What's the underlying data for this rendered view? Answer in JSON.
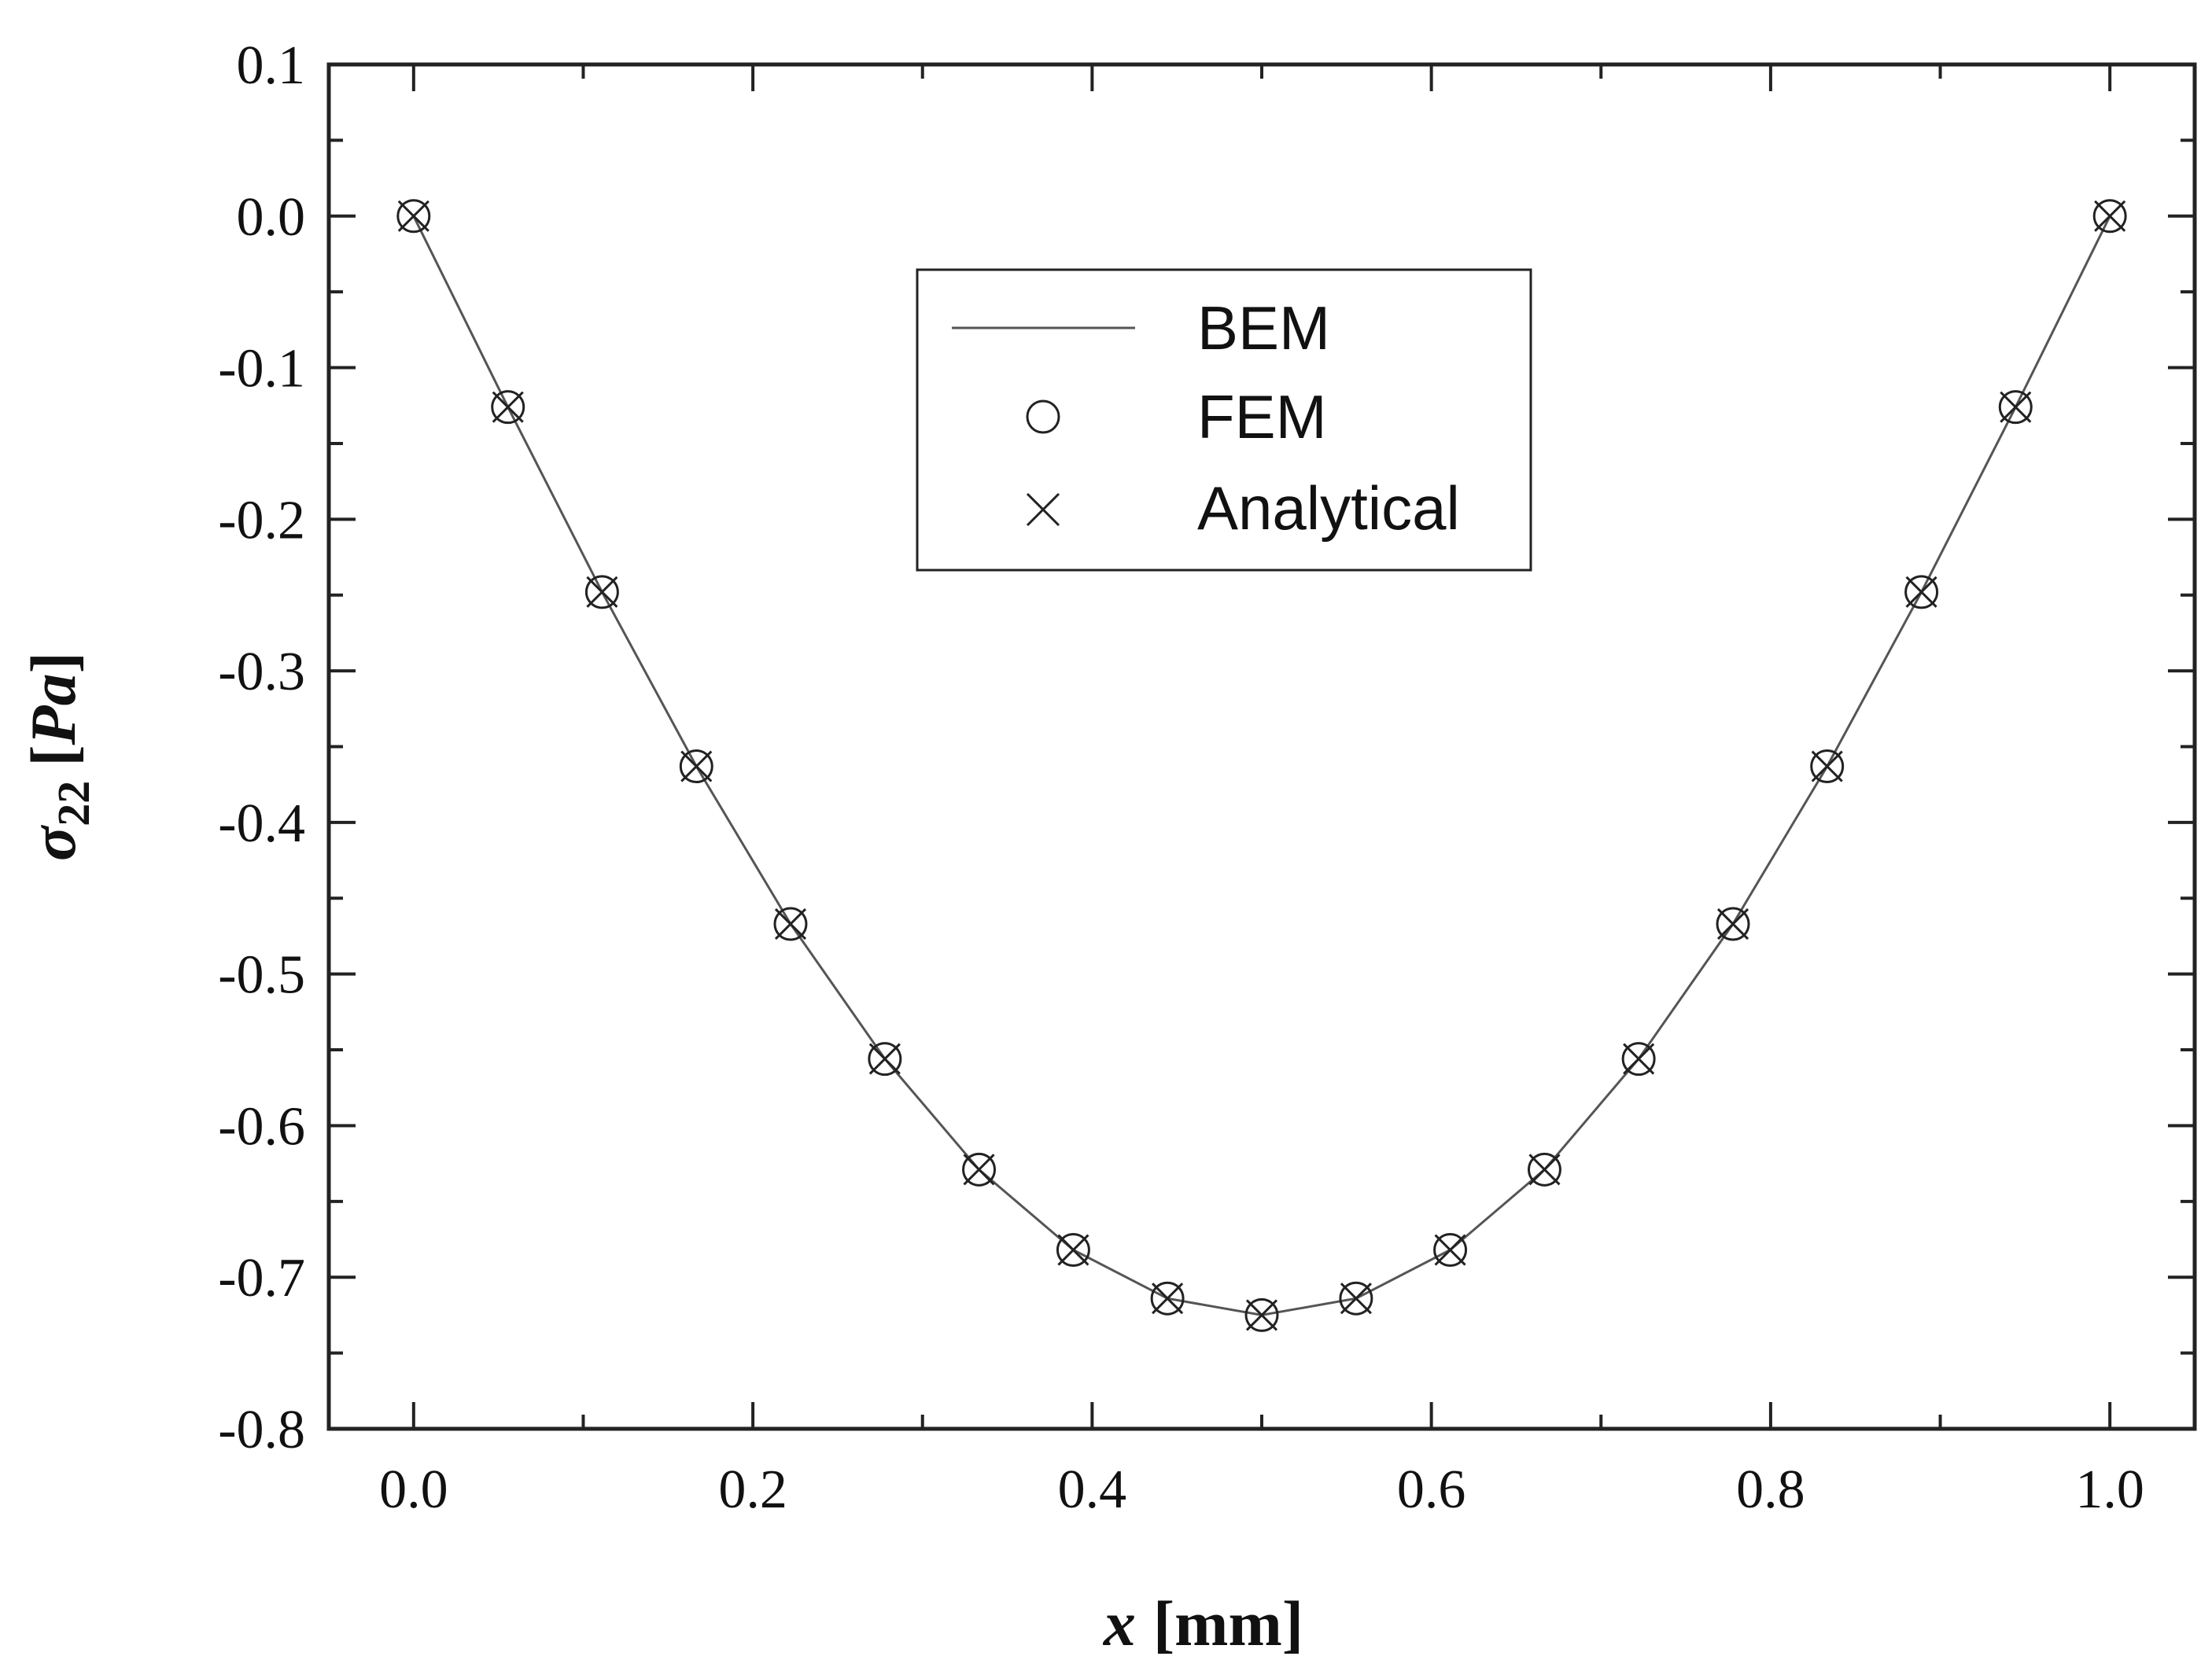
{
  "chart_data": {
    "type": "line",
    "xlabel": {
      "var": "x",
      "unit": "[mm]"
    },
    "ylabel": {
      "var": "σ",
      "sub": "22",
      "unit_open": "[",
      "unit": "Pa",
      "unit_close": "]"
    },
    "xlim": [
      -0.05,
      1.05
    ],
    "ylim": [
      -0.8,
      0.1
    ],
    "xticks": [
      0.0,
      0.2,
      0.4,
      0.6,
      0.8,
      1.0
    ],
    "xtick_labels": [
      "0.0",
      "0.2",
      "0.4",
      "0.6",
      "0.8",
      "1.0"
    ],
    "yticks": [
      0.1,
      0.0,
      -0.1,
      -0.2,
      -0.3,
      -0.4,
      -0.5,
      -0.6,
      -0.7,
      -0.8
    ],
    "ytick_labels": [
      "0.1",
      "0.0",
      "-0.1",
      "-0.2",
      "-0.3",
      "-0.4",
      "-0.5",
      "-0.6",
      "-0.7",
      "-0.8"
    ],
    "grid": false,
    "legend_position": "top-center",
    "x": [
      0.0,
      0.0556,
      0.1111,
      0.1667,
      0.2222,
      0.2778,
      0.3333,
      0.3889,
      0.4444,
      0.5,
      0.5556,
      0.6111,
      0.6667,
      0.7222,
      0.7778,
      0.8333,
      0.8889,
      0.9444,
      1.0
    ],
    "series": [
      {
        "name": "BEM",
        "style": "line",
        "color": "#555555",
        "values": [
          0.0,
          -0.126,
          -0.248,
          -0.363,
          -0.467,
          -0.556,
          -0.629,
          -0.682,
          -0.714,
          -0.725,
          -0.714,
          -0.682,
          -0.629,
          -0.556,
          -0.467,
          -0.363,
          -0.248,
          -0.126,
          0.0
        ]
      },
      {
        "name": "FEM",
        "style": "circle-marker",
        "color": "#222222",
        "values": [
          0.0,
          -0.126,
          -0.248,
          -0.363,
          -0.467,
          -0.556,
          -0.629,
          -0.682,
          -0.714,
          -0.725,
          -0.714,
          -0.682,
          -0.629,
          -0.556,
          -0.467,
          -0.363,
          -0.248,
          -0.126,
          0.0
        ]
      },
      {
        "name": "Analytical",
        "style": "x-marker",
        "color": "#222222",
        "values": [
          0.0,
          -0.126,
          -0.248,
          -0.363,
          -0.467,
          -0.556,
          -0.629,
          -0.682,
          -0.714,
          -0.725,
          -0.714,
          -0.682,
          -0.629,
          -0.556,
          -0.467,
          -0.363,
          -0.248,
          -0.126,
          0.0
        ]
      }
    ]
  }
}
